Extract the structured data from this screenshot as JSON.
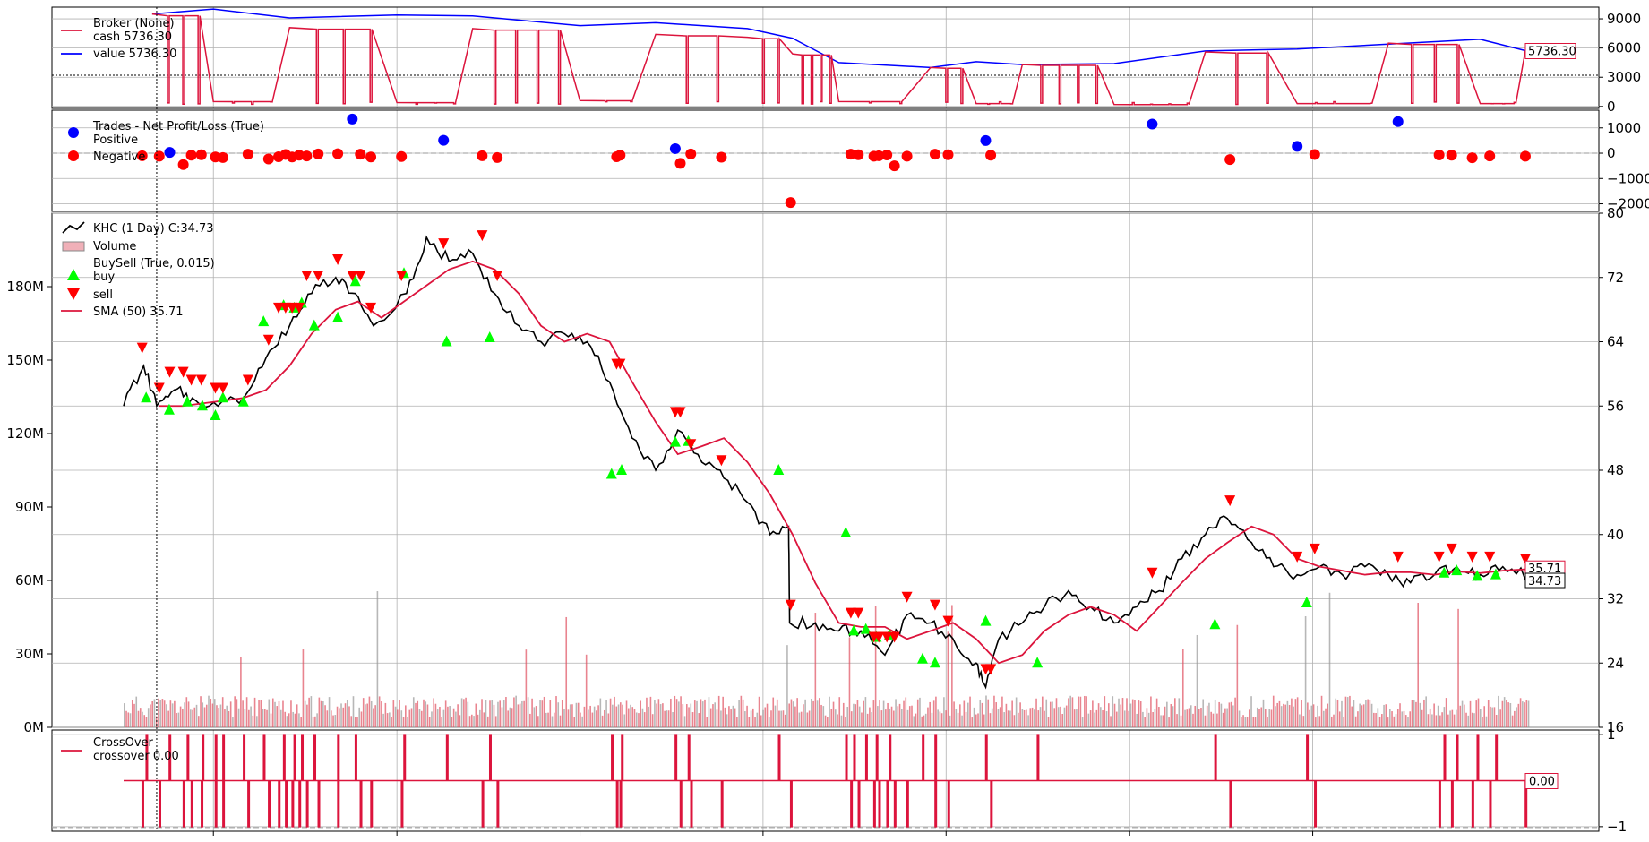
{
  "chart_data": [
    {
      "type": "line",
      "panel": "broker",
      "legend": {
        "title": "Broker (None)",
        "entries": [
          "cash 5736.30",
          "value 5736.30"
        ]
      },
      "y_ticks": [
        "9000",
        "6000",
        "3000",
        "0"
      ],
      "ylim": [
        -200,
        10200
      ],
      "last_value_label": "5736.30",
      "reference_line": 3200,
      "series": [
        {
          "name": "value",
          "color": "#0000ff",
          "x": [
            "2015-09",
            "2016-01",
            "2016-06",
            "2017-01",
            "2017-06",
            "2018-01",
            "2018-06",
            "2018-12",
            "2019-03",
            "2019-06",
            "2019-12",
            "2020-03",
            "2020-06",
            "2020-12",
            "2021-06",
            "2021-12",
            "2022-06",
            "2022-12",
            "2023-03"
          ],
          "values": [
            9500,
            10000,
            9100,
            9400,
            9300,
            8300,
            8600,
            8000,
            7000,
            4500,
            4000,
            4600,
            4300,
            4400,
            5700,
            5900,
            6400,
            6900,
            5736.3
          ]
        },
        {
          "name": "cash",
          "color": "#dc143c",
          "x": [
            "2015-09",
            "2016-01",
            "2016-06",
            "2017-01",
            "2017-06",
            "2018-01",
            "2018-06",
            "2018-12",
            "2019-03",
            "2019-06",
            "2019-12",
            "2020-03",
            "2020-06",
            "2020-12",
            "2021-06",
            "2021-12",
            "2022-06",
            "2022-12",
            "2023-03"
          ],
          "values": [
            9500,
            500,
            8100,
            400,
            8000,
            600,
            7400,
            7100,
            5400,
            500,
            4000,
            300,
            4300,
            200,
            5600,
            300,
            6500,
            300,
            5736.3
          ]
        }
      ]
    },
    {
      "type": "scatter",
      "panel": "trades",
      "legend": {
        "title": "Trades - Net Profit/Loss (True)",
        "entries": [
          "Positive",
          "Negative"
        ]
      },
      "y_ticks": [
        "1000",
        "0",
        "−1000",
        "−2000"
      ],
      "ylim": [
        -2300,
        1700
      ],
      "series": [
        {
          "name": "Positive",
          "color": "#0000ff",
          "x": [
            "2015-10-06",
            "2016-10-04",
            "2017-04-04",
            "2018-07-10",
            "2020-03-20",
            "2021-02-15",
            "2021-12-01",
            "2022-06-20"
          ],
          "values": [
            30,
            1350,
            510,
            180,
            500,
            1150,
            270,
            1250
          ]
        },
        {
          "name": "Negative",
          "color": "#ff0000",
          "x": [
            "2015-08-12",
            "2015-09-15",
            "2015-11-02",
            "2015-11-18",
            "2015-12-08",
            "2016-01-05",
            "2016-01-20",
            "2016-03-10",
            "2016-04-20",
            "2016-05-10",
            "2016-05-24",
            "2016-06-06",
            "2016-06-20",
            "2016-07-05",
            "2016-07-28",
            "2016-09-05",
            "2016-10-20",
            "2016-11-10",
            "2017-01-10",
            "2017-06-20",
            "2017-07-20",
            "2018-03-15",
            "2018-03-22",
            "2018-07-20",
            "2018-08-10",
            "2018-10-10",
            "2019-02-25",
            "2019-06-25",
            "2019-07-10",
            "2019-08-10",
            "2019-08-20",
            "2019-09-05",
            "2019-09-20",
            "2019-10-15",
            "2019-12-10",
            "2020-01-05",
            "2020-03-30",
            "2021-07-20",
            "2022-01-05",
            "2022-09-10",
            "2022-10-05",
            "2022-11-15",
            "2022-12-20",
            "2023-03-01"
          ],
          "values": [
            -100,
            -120,
            -450,
            -80,
            -60,
            -150,
            -170,
            -40,
            -230,
            -140,
            -50,
            -150,
            -80,
            -110,
            -30,
            -20,
            -40,
            -150,
            -130,
            -100,
            -170,
            -140,
            -80,
            -400,
            -30,
            -160,
            -1950,
            -40,
            -60,
            -120,
            -100,
            -70,
            -500,
            -120,
            -40,
            -60,
            -80,
            -250,
            -50,
            -70,
            -80,
            -180,
            -110,
            -120
          ]
        }
      ]
    },
    {
      "type": "line",
      "panel": "price",
      "legend": {
        "title": "KHC (1 Day) C:34.73",
        "entries": [
          "Volume",
          "BuySell (True, 0.015)",
          "buy",
          "sell",
          "SMA (50) 35.71"
        ]
      },
      "y_ticks": [
        "80",
        "72",
        "64",
        "56",
        "48",
        "40",
        "32",
        "24",
        "16"
      ],
      "ylim": [
        16,
        80
      ],
      "volume_ticks": [
        "180M",
        "150M",
        "120M",
        "90M",
        "60M",
        "30M",
        "0M"
      ],
      "volume_ylim": [
        0,
        210000000
      ],
      "last_close_label": "34.73",
      "last_sma_label": "35.71",
      "series": [
        {
          "name": "KHC (1 Day) C:34.73",
          "color": "#000000",
          "x": [
            "2015-07-06",
            "2015-08-15",
            "2015-09-10",
            "2015-10-15",
            "2015-11-20",
            "2016-01-10",
            "2016-03-01",
            "2016-04-15",
            "2016-06-01",
            "2016-07-15",
            "2016-09-01",
            "2016-10-10",
            "2016-11-15",
            "2017-01-20",
            "2017-03-01",
            "2017-04-15",
            "2017-06-01",
            "2017-07-15",
            "2017-09-01",
            "2017-10-15",
            "2017-12-01",
            "2018-01-15",
            "2018-03-01",
            "2018-04-15",
            "2018-06-01",
            "2018-07-15",
            "2018-09-01",
            "2018-10-15",
            "2018-12-01",
            "2019-01-15",
            "2019-02-21",
            "2019-02-23",
            "2019-04-15",
            "2019-06-01",
            "2019-07-15",
            "2019-09-01",
            "2019-10-15",
            "2019-12-01",
            "2020-01-15",
            "2020-03-01",
            "2020-03-20",
            "2020-04-15",
            "2020-06-01",
            "2020-07-15",
            "2020-09-01",
            "2020-10-15",
            "2020-12-01",
            "2021-01-15",
            "2021-03-01",
            "2021-04-15",
            "2021-06-01",
            "2021-07-15",
            "2021-09-01",
            "2021-10-15",
            "2021-12-01",
            "2022-01-15",
            "2022-03-01",
            "2022-04-15",
            "2022-06-01",
            "2022-07-15",
            "2022-09-01",
            "2022-10-15",
            "2022-12-01",
            "2023-01-15",
            "2023-03-10"
          ],
          "values": [
            56,
            61,
            56,
            58,
            57,
            56,
            57,
            62,
            66,
            70,
            72,
            70,
            66,
            70,
            77,
            74,
            75,
            70,
            66,
            64,
            65,
            64,
            59,
            52,
            48,
            53,
            49,
            47,
            44,
            40,
            41,
            29,
            29,
            28,
            28,
            25,
            30,
            29,
            27,
            24,
            21,
            27,
            29,
            31,
            33,
            31,
            29,
            31,
            33,
            37,
            40,
            42,
            39,
            36,
            35,
            36,
            35,
            36,
            35,
            34,
            35,
            36,
            35,
            36,
            34.73
          ]
        },
        {
          "name": "SMA (50) 35.71",
          "color": "#dc143c",
          "x": [
            "2015-09-15",
            "2015-11-01",
            "2016-01-01",
            "2016-03-01",
            "2016-04-15",
            "2016-06-01",
            "2016-07-15",
            "2016-09-01",
            "2016-10-15",
            "2016-12-01",
            "2017-01-15",
            "2017-03-01",
            "2017-04-15",
            "2017-06-01",
            "2017-07-15",
            "2017-09-01",
            "2017-10-15",
            "2017-12-01",
            "2018-01-15",
            "2018-03-01",
            "2018-04-15",
            "2018-06-01",
            "2018-07-15",
            "2018-09-01",
            "2018-10-15",
            "2018-12-01",
            "2019-01-15",
            "2019-03-01",
            "2019-04-15",
            "2019-06-01",
            "2019-07-15",
            "2019-09-01",
            "2019-10-15",
            "2019-12-01",
            "2020-01-15",
            "2020-03-01",
            "2020-04-15",
            "2020-06-01",
            "2020-07-15",
            "2020-09-01",
            "2020-10-15",
            "2020-12-01",
            "2021-01-15",
            "2021-03-01",
            "2021-04-15",
            "2021-06-01",
            "2021-07-15",
            "2021-09-01",
            "2021-10-15",
            "2021-12-01",
            "2022-01-15",
            "2022-03-01",
            "2022-04-15",
            "2022-06-01",
            "2022-07-15",
            "2022-09-01",
            "2022-10-15",
            "2022-12-01",
            "2023-01-15",
            "2023-03-10"
          ],
          "values": [
            56,
            56,
            56.5,
            57,
            58,
            61,
            65,
            68,
            69,
            67,
            69,
            71,
            73,
            74,
            73,
            70,
            66,
            64,
            65,
            64,
            59,
            54,
            50,
            51,
            52,
            49,
            45,
            40,
            34,
            29,
            28.5,
            28.5,
            27,
            28,
            29,
            27,
            24,
            25,
            28,
            30,
            31,
            30,
            28,
            31,
            34,
            37,
            39,
            41,
            40,
            37,
            36,
            35.5,
            35,
            35.3,
            35.3,
            35,
            35.4,
            35.2,
            35.5,
            35.71
          ]
        }
      ],
      "buy_marker_dates": [
        "2015-08-20",
        "2015-10-05",
        "2015-11-10",
        "2015-12-10",
        "2016-01-05",
        "2016-01-20",
        "2016-03-01",
        "2016-04-10",
        "2016-05-20",
        "2016-06-10",
        "2016-06-25",
        "2016-07-20",
        "2016-09-05",
        "2016-10-10",
        "2017-01-15",
        "2017-04-10",
        "2017-07-05",
        "2018-03-05",
        "2018-03-25",
        "2018-07-10",
        "2018-08-05",
        "2019-02-01",
        "2019-06-15",
        "2019-07-01",
        "2019-07-25",
        "2019-08-15",
        "2019-09-10",
        "2019-11-15",
        "2019-12-10",
        "2020-03-20",
        "2020-07-01",
        "2021-06-20",
        "2021-12-20",
        "2022-09-20",
        "2022-10-15",
        "2022-11-25",
        "2023-01-01"
      ],
      "buy_marker_values": [
        57,
        55.5,
        56.5,
        56,
        54.8,
        57,
        56.5,
        66.5,
        68.5,
        68.2,
        68.8,
        66,
        67,
        71.5,
        72.5,
        64,
        64.5,
        47.5,
        48,
        51.5,
        51.6,
        48,
        40.2,
        28,
        28.2,
        27.2,
        27.5,
        24.5,
        24,
        29.2,
        24,
        28.8,
        31.5,
        35.2,
        35.5,
        34.8,
        35
      ]
    },
    {
      "type": "line",
      "panel": "crossover",
      "legend": {
        "title": "CrossOver",
        "entries": [
          "crossover 0.00"
        ]
      },
      "y_ticks": [
        "1",
        "−1"
      ],
      "ylim": [
        -1.1,
        1.1
      ],
      "last_value_label": "0.00",
      "series": [
        {
          "name": "crossover",
          "color": "#dc143c",
          "x": [
            "2015-07-06",
            "2023-03-10"
          ],
          "values": [
            0,
            0
          ]
        }
      ]
    }
  ],
  "x_axis": {
    "start": "2015-07-06",
    "end": "2023-03-10",
    "gridlines": [
      "2016-01-01",
      "2017-01-01",
      "2018-01-01",
      "2019-01-01",
      "2020-01-01",
      "2021-01-01",
      "2022-01-01"
    ]
  }
}
